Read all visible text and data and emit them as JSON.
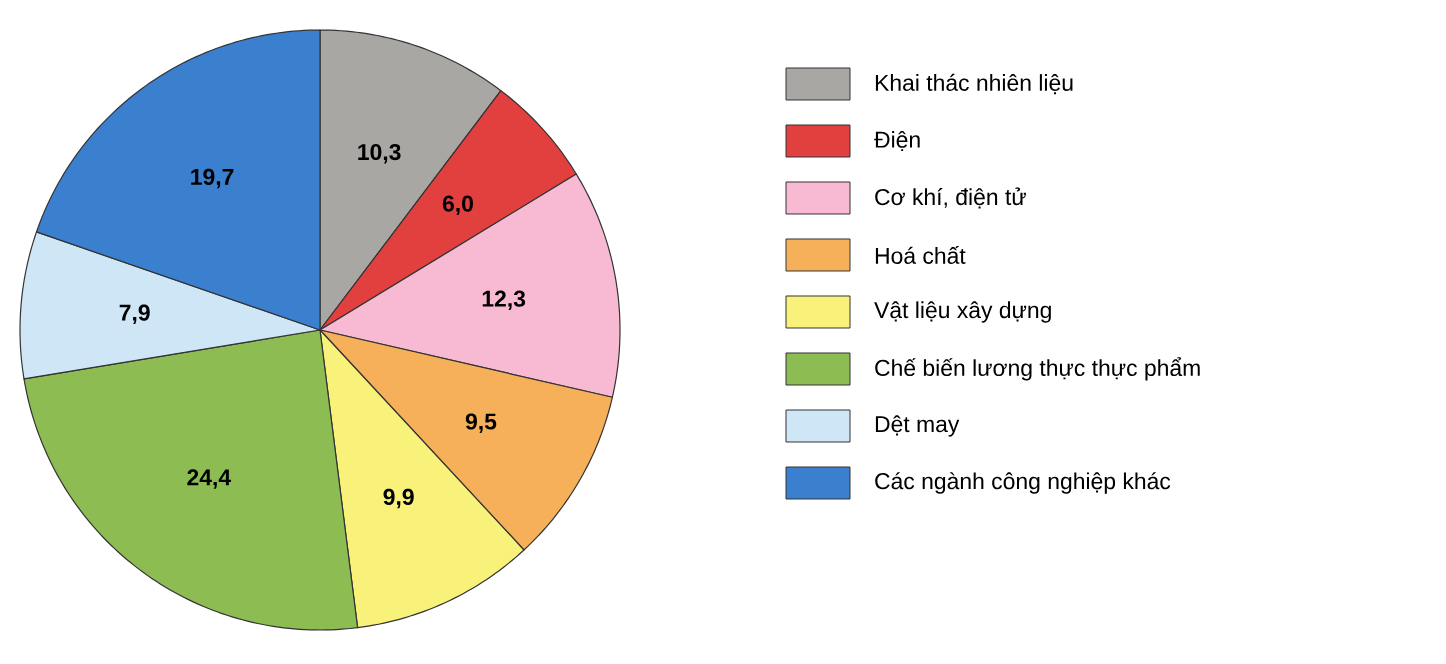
{
  "chart_data": {
    "type": "pie",
    "categories": [
      "Khai thác nhiên liệu",
      "Điện",
      "Cơ khí, điện tử",
      "Hoá chất",
      "Vật liệu xây dựng",
      "Chế biến lương thực thực phẩm",
      "Dệt may",
      "Các ngành công nghiệp khác"
    ],
    "values": [
      10.3,
      6.0,
      12.3,
      9.5,
      9.9,
      24.4,
      7.9,
      19.7
    ],
    "value_labels": [
      "10,3",
      "6,0",
      "12,3",
      "9,5",
      "9,9",
      "24,4",
      "7,9",
      "19,7"
    ],
    "colors": [
      "#a9a7a4",
      "#e2403f",
      "#f8b9d2",
      "#f6b05a",
      "#f9f27a",
      "#8cbc52",
      "#cfe6f6",
      "#3b7fcf"
    ],
    "legend": "right"
  }
}
